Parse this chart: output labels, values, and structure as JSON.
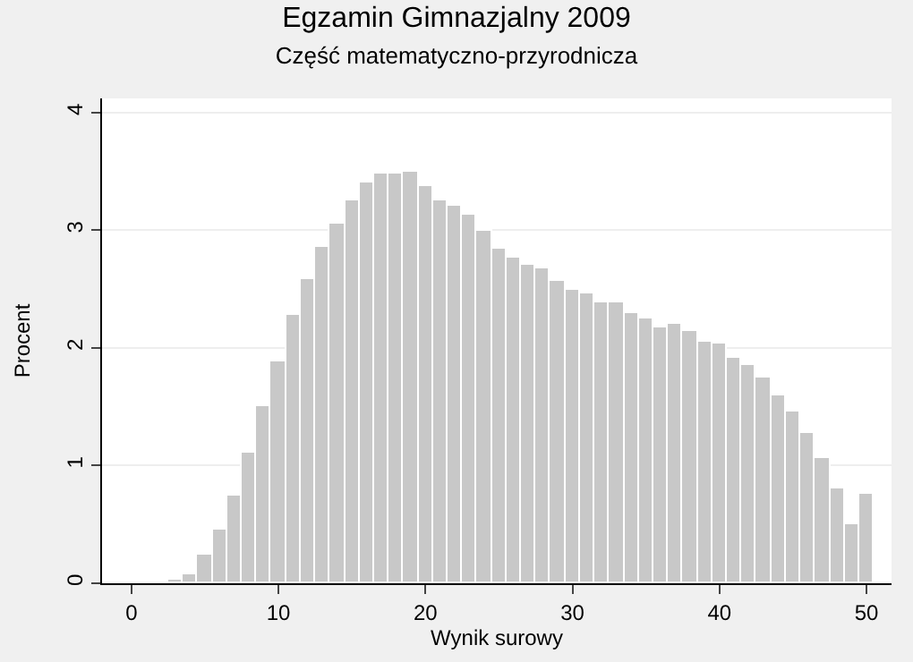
{
  "chart_data": {
    "type": "histogram",
    "title": "Egzamin Gimnazjalny 2009",
    "subtitle": "Część matematyczno-przyrodnicza",
    "xlabel": "Wynik surowy",
    "ylabel": "Procent",
    "bins": [
      -0.5,
      0.5,
      1.5,
      2.5,
      3.5,
      4.5,
      5.5,
      6.5,
      7.5,
      8.5,
      9.5,
      10.5,
      11.5,
      12.5,
      13.5,
      14.5,
      15.5,
      16.5,
      17.5,
      18.5,
      19.5,
      20.5,
      21.5,
      22.5,
      23.5,
      24.5,
      25.5,
      26.5,
      27.5,
      28.5,
      29.5,
      30.5,
      31.5,
      32.5,
      33.5,
      34.5,
      35.5,
      36.5,
      37.5,
      38.5,
      39.5,
      40.5,
      41.5,
      42.5,
      43.5,
      44.5,
      45.5,
      46.5,
      47.5,
      48.5,
      49.5,
      50.5
    ],
    "values": [
      0.02,
      0.02,
      0.02,
      0.03,
      0.08,
      0.24,
      0.45,
      0.75,
      1.11,
      1.51,
      1.89,
      2.28,
      2.59,
      2.86,
      3.06,
      3.25,
      3.41,
      3.48,
      3.48,
      3.49,
      3.37,
      3.25,
      3.21,
      3.13,
      2.99,
      2.85,
      2.77,
      2.71,
      2.67,
      2.57,
      2.49,
      2.47,
      2.39,
      2.38,
      2.3,
      2.25,
      2.18,
      2.2,
      2.14,
      2.05,
      2.03,
      1.91,
      1.86,
      1.75,
      1.59,
      1.46,
      1.27,
      1.07,
      0.8,
      0.5,
      0.76
    ],
    "color": "#c8c8c8",
    "xlim": [
      -2,
      51.7
    ],
    "ylim": [
      0,
      4.12
    ],
    "xticks": [
      0,
      10,
      20,
      30,
      40,
      50
    ],
    "yticks": [
      0,
      1,
      2,
      3,
      4
    ],
    "grid": "y"
  }
}
